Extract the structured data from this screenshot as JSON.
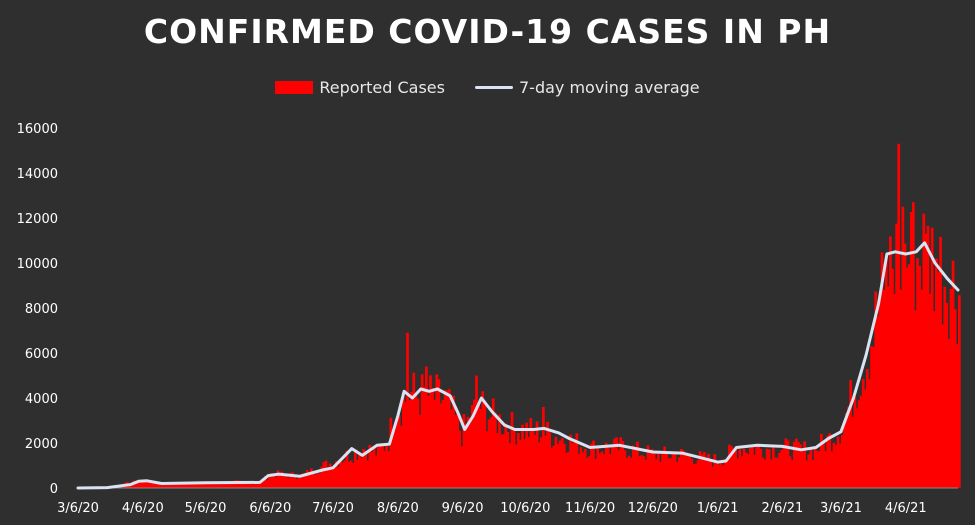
{
  "title": "CONFIRMED COVID-19 CASES IN PH",
  "colors": {
    "background": "#2f2f2f",
    "bars": "#ff0000",
    "average_line": "#d8e4f2",
    "text": "#ffffff"
  },
  "legend": {
    "bars_label": "Reported Cases",
    "line_label": "7-day moving average",
    "position": "top-center"
  },
  "chart_data": {
    "type": "bar",
    "title": "CONFIRMED COVID-19 CASES IN PH",
    "xlabel": "",
    "ylabel": "",
    "ylim": [
      0,
      16000
    ],
    "grid": false,
    "yticks": [
      0,
      2000,
      4000,
      6000,
      8000,
      10000,
      12000,
      14000,
      16000
    ],
    "xtick_labels": [
      "3/6/20",
      "4/6/20",
      "5/6/20",
      "6/6/20",
      "7/6/20",
      "8/6/20",
      "9/6/20",
      "10/6/20",
      "11/6/20",
      "12/6/20",
      "1/6/21",
      "2/6/21",
      "3/6/21",
      "4/6/21"
    ],
    "xtick_dates": [
      "2020-03-06",
      "2020-04-06",
      "2020-05-06",
      "2020-06-06",
      "2020-07-06",
      "2020-08-06",
      "2020-09-06",
      "2020-10-06",
      "2020-11-06",
      "2020-12-06",
      "2021-01-06",
      "2021-02-06",
      "2021-03-06",
      "2021-04-06"
    ],
    "x_range": [
      "2020-03-06",
      "2021-05-01"
    ],
    "series": [
      {
        "name": "Reported Cases",
        "kind": "bar",
        "anchors": [
          [
            "2020-03-06",
            0
          ],
          [
            "2020-03-20",
            20
          ],
          [
            "2020-03-31",
            250
          ],
          [
            "2020-04-06",
            330
          ],
          [
            "2020-04-15",
            200
          ],
          [
            "2020-05-06",
            250
          ],
          [
            "2020-06-01",
            300
          ],
          [
            "2020-06-06",
            650
          ],
          [
            "2020-06-20",
            550
          ],
          [
            "2020-07-06",
            1200
          ],
          [
            "2020-07-20",
            1800
          ],
          [
            "2020-07-27",
            1600
          ],
          [
            "2020-08-01",
            2200
          ],
          [
            "2020-08-04",
            3500
          ],
          [
            "2020-08-11",
            4300
          ],
          [
            "2020-08-20",
            4200
          ],
          [
            "2020-08-28",
            4000
          ],
          [
            "2020-09-01",
            3300
          ],
          [
            "2020-09-05",
            2500
          ],
          [
            "2020-09-13",
            3800
          ],
          [
            "2020-09-20",
            3200
          ],
          [
            "2020-09-30",
            2700
          ],
          [
            "2020-10-15",
            2500
          ],
          [
            "2020-10-25",
            2200
          ],
          [
            "2020-11-06",
            1800
          ],
          [
            "2020-11-20",
            1850
          ],
          [
            "2020-12-06",
            1500
          ],
          [
            "2020-12-20",
            1500
          ],
          [
            "2020-12-31",
            1300
          ],
          [
            "2021-01-06",
            1250
          ],
          [
            "2021-01-15",
            1800
          ],
          [
            "2021-02-06",
            1800
          ],
          [
            "2021-02-20",
            1700
          ],
          [
            "2021-03-01",
            2300
          ],
          [
            "2021-03-06",
            2800
          ],
          [
            "2021-03-12",
            4500
          ],
          [
            "2021-03-18",
            6000
          ],
          [
            "2021-03-23",
            8000
          ],
          [
            "2021-03-28",
            10000
          ],
          [
            "2021-04-02",
            10500
          ],
          [
            "2021-04-10",
            10400
          ],
          [
            "2021-04-15",
            10900
          ],
          [
            "2021-04-22",
            10000
          ],
          [
            "2021-05-01",
            8800
          ]
        ],
        "peaks": [
          [
            "2020-08-10",
            6900
          ],
          [
            "2020-08-19",
            5400
          ],
          [
            "2020-09-12",
            5000
          ],
          [
            "2020-10-14",
            3600
          ],
          [
            "2021-03-26",
            8800
          ],
          [
            "2021-04-02",
            15300
          ],
          [
            "2021-04-04",
            12500
          ],
          [
            "2021-04-09",
            12700
          ],
          [
            "2021-04-15",
            11300
          ],
          [
            "2021-04-20",
            10200
          ]
        ]
      },
      {
        "name": "7-day moving average",
        "kind": "line",
        "points": [
          [
            "2020-03-06",
            0
          ],
          [
            "2020-03-20",
            20
          ],
          [
            "2020-03-31",
            150
          ],
          [
            "2020-04-04",
            300
          ],
          [
            "2020-04-08",
            320
          ],
          [
            "2020-04-15",
            200
          ],
          [
            "2020-05-06",
            230
          ],
          [
            "2020-06-01",
            250
          ],
          [
            "2020-06-05",
            550
          ],
          [
            "2020-06-10",
            620
          ],
          [
            "2020-06-20",
            520
          ],
          [
            "2020-07-01",
            800
          ],
          [
            "2020-07-06",
            900
          ],
          [
            "2020-07-15",
            1750
          ],
          [
            "2020-07-20",
            1450
          ],
          [
            "2020-07-27",
            1900
          ],
          [
            "2020-08-02",
            1950
          ],
          [
            "2020-08-06",
            3200
          ],
          [
            "2020-08-09",
            4300
          ],
          [
            "2020-08-13",
            4000
          ],
          [
            "2020-08-17",
            4400
          ],
          [
            "2020-08-21",
            4300
          ],
          [
            "2020-08-25",
            4400
          ],
          [
            "2020-08-31",
            4100
          ],
          [
            "2020-09-04",
            3300
          ],
          [
            "2020-09-07",
            2600
          ],
          [
            "2020-09-11",
            3200
          ],
          [
            "2020-09-15",
            4000
          ],
          [
            "2020-09-20",
            3400
          ],
          [
            "2020-09-26",
            2800
          ],
          [
            "2020-10-01",
            2600
          ],
          [
            "2020-10-10",
            2600
          ],
          [
            "2020-10-15",
            2650
          ],
          [
            "2020-10-22",
            2450
          ],
          [
            "2020-10-27",
            2200
          ],
          [
            "2020-11-06",
            1800
          ],
          [
            "2020-11-20",
            1900
          ],
          [
            "2020-12-06",
            1600
          ],
          [
            "2020-12-20",
            1550
          ],
          [
            "2020-12-31",
            1300
          ],
          [
            "2021-01-06",
            1150
          ],
          [
            "2021-01-10",
            1200
          ],
          [
            "2021-01-15",
            1800
          ],
          [
            "2021-01-25",
            1900
          ],
          [
            "2021-02-06",
            1850
          ],
          [
            "2021-02-15",
            1700
          ],
          [
            "2021-02-22",
            1800
          ],
          [
            "2021-02-28",
            2200
          ],
          [
            "2021-03-06",
            2500
          ],
          [
            "2021-03-12",
            4000
          ],
          [
            "2021-03-18",
            5900
          ],
          [
            "2021-03-24",
            8200
          ],
          [
            "2021-03-28",
            10400
          ],
          [
            "2021-04-01",
            10500
          ],
          [
            "2021-04-06",
            10400
          ],
          [
            "2021-04-11",
            10500
          ],
          [
            "2021-04-15",
            10900
          ],
          [
            "2021-04-20",
            10000
          ],
          [
            "2021-04-26",
            9300
          ],
          [
            "2021-05-01",
            8800
          ]
        ]
      }
    ]
  }
}
